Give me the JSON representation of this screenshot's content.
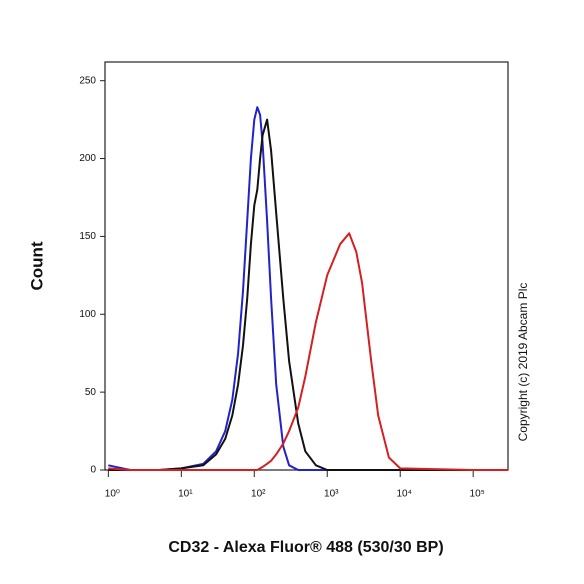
{
  "chart_data": {
    "type": "line",
    "x_label": "CD32 - Alexa Fluor® 488 (530/30 BP)",
    "y_label": "Count",
    "annotation": "Copyright (c) 2019 Abcam Plc",
    "x_scale": "log",
    "x": [
      1,
      2,
      5,
      10,
      20,
      30,
      40,
      50,
      60,
      70,
      80,
      90,
      100,
      110,
      120,
      130,
      150,
      170,
      200,
      250,
      300,
      400,
      500,
      700,
      1000,
      1500,
      2000,
      2500,
      3000,
      4000,
      5000,
      7000,
      10000,
      100000,
      300000
    ],
    "series": [
      {
        "name": "Blue",
        "color": "#2222cc",
        "values": [
          3,
          0,
          0,
          1,
          4,
          12,
          25,
          45,
          75,
          115,
          160,
          200,
          225,
          233,
          228,
          210,
          160,
          110,
          55,
          15,
          3,
          0,
          0,
          0,
          0,
          0,
          0,
          0,
          0,
          0,
          0,
          0,
          0,
          0,
          0
        ]
      },
      {
        "name": "Black",
        "color": "#111111",
        "values": [
          0,
          0,
          0,
          1,
          3,
          10,
          20,
          35,
          55,
          80,
          110,
          145,
          170,
          180,
          200,
          215,
          225,
          205,
          165,
          110,
          70,
          30,
          12,
          3,
          0,
          0,
          0,
          0,
          0,
          0,
          0,
          0,
          0,
          0,
          0
        ]
      },
      {
        "name": "Red",
        "color": "#d42020",
        "values": [
          1,
          0,
          0,
          0,
          0,
          0,
          0,
          0,
          0,
          0,
          0,
          0,
          0,
          0,
          1,
          2,
          4,
          6,
          10,
          17,
          25,
          40,
          60,
          95,
          125,
          145,
          152,
          140,
          120,
          70,
          35,
          8,
          1,
          0,
          0
        ]
      }
    ],
    "xlim": [
      0.9,
      300000
    ],
    "xticks": [
      {
        "value": 1,
        "label": "10⁰"
      },
      {
        "value": 10,
        "label": "10¹"
      },
      {
        "value": 100,
        "label": "10²"
      },
      {
        "value": 1000,
        "label": "10³"
      },
      {
        "value": 10000,
        "label": "10⁴"
      },
      {
        "value": 100000,
        "label": "10⁵"
      }
    ],
    "ylim": [
      0,
      262
    ],
    "yticks": [
      0,
      50,
      100,
      150,
      200,
      250
    ]
  }
}
